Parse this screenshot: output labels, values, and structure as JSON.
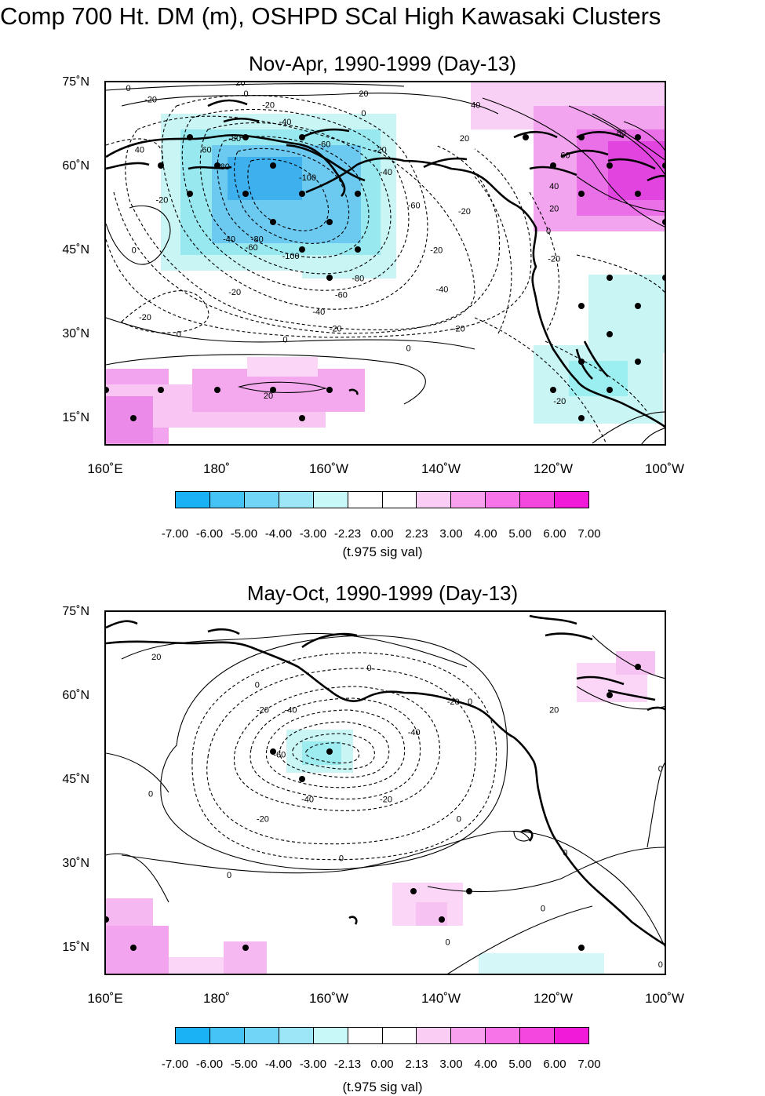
{
  "title": "Comp 700 Ht. DM (m), OSHPD SCal High Kawasaki Clusters",
  "colors": {
    "neg_max": "#1ab1f5",
    "neutral": "#ffffff",
    "pos_max": "#f21ad9",
    "contour": "#000000"
  },
  "lon_ticks": [
    "160˚E",
    "180˚",
    "160˚W",
    "140˚W",
    "120˚W",
    "100˚W"
  ],
  "lat_ticks": [
    "75˚N",
    "60˚N",
    "45˚N",
    "30˚N",
    "15˚N"
  ],
  "panels": [
    {
      "title": "Nov-Apr, 1990-1999 (Day-13)",
      "colorbar_labels": [
        "-7.00",
        "-6.00",
        "-5.00",
        "-4.00",
        "-3.00",
        "-2.23",
        "0.00",
        "2.23",
        "3.00",
        "4.00",
        "5.00",
        "6.00",
        "7.00"
      ],
      "colorbar_caption": "(t.975 sig val)",
      "contour_labels": [
        {
          "text": "0",
          "lon": 164,
          "lat": 74
        },
        {
          "text": "-20",
          "lon": 168,
          "lat": 72
        },
        {
          "text": "20",
          "lon": 184,
          "lat": 75
        },
        {
          "text": "0",
          "lon": 185,
          "lat": 73
        },
        {
          "text": "-20",
          "lon": 189,
          "lat": 71
        },
        {
          "text": "20",
          "lon": 206,
          "lat": 73
        },
        {
          "text": "0",
          "lon": 206,
          "lat": 69.5
        },
        {
          "text": "40",
          "lon": 226,
          "lat": 71
        },
        {
          "text": "-40",
          "lon": 192,
          "lat": 68
        },
        {
          "text": "-60",
          "lon": 199,
          "lat": 64
        },
        {
          "text": "-80",
          "lon": 183,
          "lat": 65
        },
        {
          "text": "20",
          "lon": 224,
          "lat": 65
        },
        {
          "text": "-20",
          "lon": 209,
          "lat": 63
        },
        {
          "text": "-40",
          "lon": 210,
          "lat": 59
        },
        {
          "text": "-60",
          "lon": 215,
          "lat": 53
        },
        {
          "text": "-20",
          "lon": 224,
          "lat": 52
        },
        {
          "text": "60",
          "lon": 178,
          "lat": 63
        },
        {
          "text": "40",
          "lon": 166,
          "lat": 63
        },
        {
          "text": "-80",
          "lon": 181,
          "lat": 60
        },
        {
          "text": "-100",
          "lon": 196,
          "lat": 58
        },
        {
          "text": "-20",
          "lon": 170,
          "lat": 54
        },
        {
          "text": "0",
          "lon": 165,
          "lat": 45
        },
        {
          "text": "-40",
          "lon": 182,
          "lat": 47
        },
        {
          "text": "-80",
          "lon": 187,
          "lat": 47
        },
        {
          "text": "-60",
          "lon": 186,
          "lat": 45.5
        },
        {
          "text": "-100",
          "lon": 193,
          "lat": 44
        },
        {
          "text": "-80",
          "lon": 205,
          "lat": 40
        },
        {
          "text": "-60",
          "lon": 202,
          "lat": 37
        },
        {
          "text": "-40",
          "lon": 220,
          "lat": 38
        },
        {
          "text": "-20",
          "lon": 183,
          "lat": 37.5
        },
        {
          "text": "-20",
          "lon": 167,
          "lat": 33
        },
        {
          "text": "-40",
          "lon": 198,
          "lat": 34
        },
        {
          "text": "-20",
          "lon": 201,
          "lat": 31
        },
        {
          "text": "-20",
          "lon": 223,
          "lat": 31
        },
        {
          "text": "0",
          "lon": 173,
          "lat": 30
        },
        {
          "text": "0",
          "lon": 192,
          "lat": 29
        },
        {
          "text": "0",
          "lon": 214,
          "lat": 27.5
        },
        {
          "text": "80",
          "lon": 252,
          "lat": 66
        },
        {
          "text": "60",
          "lon": 242,
          "lat": 62
        },
        {
          "text": "40",
          "lon": 240,
          "lat": 56.5
        },
        {
          "text": "20",
          "lon": 240,
          "lat": 52.5
        },
        {
          "text": "0",
          "lon": 239,
          "lat": 48.5
        },
        {
          "text": "-20",
          "lon": 240,
          "lat": 43.5
        },
        {
          "text": "-20",
          "lon": 241,
          "lat": 18
        },
        {
          "text": "20",
          "lon": 189,
          "lat": 19
        },
        {
          "text": "-20",
          "lon": 219,
          "lat": 45
        }
      ]
    },
    {
      "title": "May-Oct, 1990-1999 (Day-13)",
      "colorbar_labels": [
        "-7.00",
        "-6.00",
        "-5.00",
        "-4.00",
        "-3.00",
        "-2.13",
        "0.00",
        "2.13",
        "3.00",
        "4.00",
        "5.00",
        "6.00",
        "7.00"
      ],
      "colorbar_caption": "(t.975 sig val)",
      "contour_labels": [
        {
          "text": "20",
          "lon": 169,
          "lat": 67
        },
        {
          "text": "0",
          "lon": 207,
          "lat": 65
        },
        {
          "text": "0",
          "lon": 187,
          "lat": 62
        },
        {
          "text": "-20",
          "lon": 188,
          "lat": 57.5
        },
        {
          "text": "-40",
          "lon": 193,
          "lat": 57.5
        },
        {
          "text": "-20",
          "lon": 222,
          "lat": 59
        },
        {
          "text": "0",
          "lon": 225,
          "lat": 59
        },
        {
          "text": "-40",
          "lon": 215,
          "lat": 53.5
        },
        {
          "text": "-60",
          "lon": 191,
          "lat": 49.5
        },
        {
          "text": "20",
          "lon": 240,
          "lat": 57.5
        },
        {
          "text": "0",
          "lon": 168,
          "lat": 42.5
        },
        {
          "text": "-40",
          "lon": 196,
          "lat": 41.5
        },
        {
          "text": "-20",
          "lon": 210,
          "lat": 41.5
        },
        {
          "text": "-20",
          "lon": 188,
          "lat": 38
        },
        {
          "text": "0",
          "lon": 223,
          "lat": 38
        },
        {
          "text": "0",
          "lon": 182,
          "lat": 28
        },
        {
          "text": "0",
          "lon": 202,
          "lat": 31
        },
        {
          "text": "0",
          "lon": 242,
          "lat": 32
        },
        {
          "text": "0",
          "lon": 259,
          "lat": 47
        },
        {
          "text": "0",
          "lon": 238,
          "lat": 22
        },
        {
          "text": "0",
          "lon": 221,
          "lat": 16
        },
        {
          "text": "0",
          "lon": 259,
          "lat": 12
        }
      ]
    }
  ]
}
